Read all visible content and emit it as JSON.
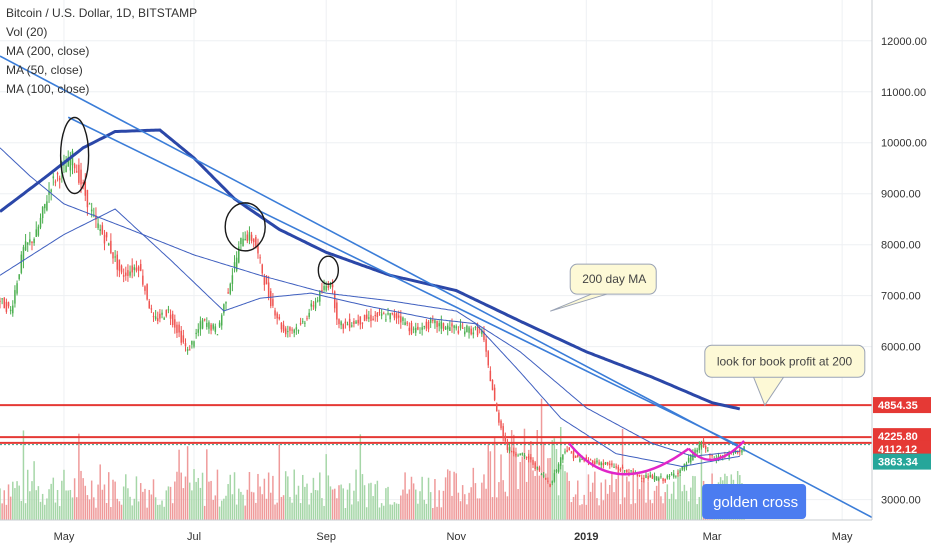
{
  "legend": {
    "symbol": "Bitcoin / U.S. Dollar, 1D, BITSTAMP",
    "indicators": [
      "Vol (20)",
      "MA (200, close)",
      "MA (50, close)",
      "MA (100, close)"
    ]
  },
  "colors": {
    "up": "#4caf50",
    "down": "#ef5350",
    "vol_up": "#a5d6a7",
    "vol_down": "#ef9a9a",
    "ma200": "#2b47a8",
    "ma_thin": "#3f5fbf",
    "trend": "#3b7dd8",
    "hline": "#e53935",
    "ellipse": "#1a1a1a",
    "cup": "#e026c8",
    "golden": "#4b7cf0",
    "callout_bg": "#fdf9d6",
    "callout_border": "#9aa3b5"
  },
  "chart_data": {
    "type": "candlestick",
    "title": "Bitcoin / U.S. Dollar, 1D, BITSTAMP",
    "ylim": [
      2600,
      12800
    ],
    "yticks": [
      "12000.00",
      "11000.00",
      "10000.00",
      "9000.00",
      "8000.00",
      "7000.00",
      "6000.00",
      "3000.00"
    ],
    "ytick_values": [
      12000,
      11000,
      10000,
      9000,
      8000,
      7000,
      6000,
      3000
    ],
    "xlim": [
      "2018-04-01",
      "2019-05-15"
    ],
    "xticks": [
      "May",
      "Jul",
      "Sep",
      "Nov",
      "2019",
      "Mar",
      "May"
    ],
    "xtick_dates": [
      "2018-05-01",
      "2018-07-01",
      "2018-09-01",
      "2018-11-01",
      "2019-01-01",
      "2019-03-01",
      "2019-05-01"
    ],
    "price_anchors": [
      [
        "2018-04-01",
        6900
      ],
      [
        "2018-04-06",
        6700
      ],
      [
        "2018-04-12",
        7900
      ],
      [
        "2018-04-18",
        8200
      ],
      [
        "2018-04-25",
        9200
      ],
      [
        "2018-05-05",
        9700
      ],
      [
        "2018-05-10",
        9100
      ],
      [
        "2018-05-15",
        8500
      ],
      [
        "2018-05-22",
        8000
      ],
      [
        "2018-05-28",
        7400
      ],
      [
        "2018-06-05",
        7600
      ],
      [
        "2018-06-12",
        6500
      ],
      [
        "2018-06-19",
        6700
      ],
      [
        "2018-06-28",
        5900
      ],
      [
        "2018-07-05",
        6500
      ],
      [
        "2018-07-12",
        6300
      ],
      [
        "2018-07-18",
        7300
      ],
      [
        "2018-07-24",
        8200
      ],
      [
        "2018-07-29",
        8100
      ],
      [
        "2018-08-05",
        7000
      ],
      [
        "2018-08-12",
        6300
      ],
      [
        "2018-08-20",
        6400
      ],
      [
        "2018-08-27",
        6900
      ],
      [
        "2018-09-03",
        7300
      ],
      [
        "2018-09-07",
        6400
      ],
      [
        "2018-09-15",
        6500
      ],
      [
        "2018-09-25",
        6600
      ],
      [
        "2018-10-05",
        6600
      ],
      [
        "2018-10-12",
        6300
      ],
      [
        "2018-10-20",
        6450
      ],
      [
        "2018-11-01",
        6350
      ],
      [
        "2018-11-13",
        6300
      ],
      [
        "2018-11-16",
        5600
      ],
      [
        "2018-11-20",
        4700
      ],
      [
        "2018-11-25",
        4000
      ],
      [
        "2018-12-05",
        3800
      ],
      [
        "2018-12-15",
        3300
      ],
      [
        "2018-12-22",
        4000
      ],
      [
        "2018-12-28",
        3800
      ],
      [
        "2019-01-10",
        3700
      ],
      [
        "2019-01-20",
        3550
      ],
      [
        "2019-01-28",
        3450
      ],
      [
        "2019-02-07",
        3400
      ],
      [
        "2019-02-15",
        3600
      ],
      [
        "2019-02-24",
        4100
      ],
      [
        "2019-03-01",
        3800
      ],
      [
        "2019-03-10",
        3900
      ],
      [
        "2019-03-16",
        4000
      ]
    ],
    "ma200_anchors": [
      [
        "2018-04-01",
        8650
      ],
      [
        "2018-04-20",
        9250
      ],
      [
        "2018-05-10",
        9900
      ],
      [
        "2018-05-25",
        10220
      ],
      [
        "2018-06-15",
        10250
      ],
      [
        "2018-07-01",
        9700
      ],
      [
        "2018-07-20",
        8900
      ],
      [
        "2018-08-10",
        8300
      ],
      [
        "2018-09-01",
        7850
      ],
      [
        "2018-10-01",
        7400
      ],
      [
        "2018-11-01",
        7100
      ],
      [
        "2018-12-01",
        6500
      ],
      [
        "2019-01-01",
        5900
      ],
      [
        "2019-02-01",
        5400
      ],
      [
        "2019-03-01",
        4900
      ],
      [
        "2019-03-14",
        4780
      ]
    ],
    "ma100_anchors": [
      [
        "2018-04-01",
        9900
      ],
      [
        "2018-04-15",
        9350
      ],
      [
        "2018-05-01",
        8800
      ],
      [
        "2018-06-01",
        8300
      ],
      [
        "2018-07-01",
        7800
      ],
      [
        "2018-08-01",
        7400
      ],
      [
        "2018-09-01",
        7050
      ],
      [
        "2018-10-01",
        6900
      ],
      [
        "2018-11-01",
        6700
      ],
      [
        "2018-12-01",
        5900
      ],
      [
        "2019-01-01",
        4800
      ],
      [
        "2019-02-01",
        4100
      ],
      [
        "2019-02-20",
        3850
      ],
      [
        "2019-03-14",
        3950
      ]
    ],
    "ma50_anchors": [
      [
        "2018-04-01",
        7400
      ],
      [
        "2018-05-01",
        8200
      ],
      [
        "2018-05-25",
        8700
      ],
      [
        "2018-06-20",
        7700
      ],
      [
        "2018-07-15",
        6700
      ],
      [
        "2018-08-01",
        6950
      ],
      [
        "2018-08-25",
        7050
      ],
      [
        "2018-09-20",
        6800
      ],
      [
        "2018-10-20",
        6550
      ],
      [
        "2018-11-10",
        6450
      ],
      [
        "2018-12-01",
        5500
      ],
      [
        "2018-12-20",
        4600
      ],
      [
        "2019-01-15",
        3900
      ],
      [
        "2019-02-15",
        3650
      ],
      [
        "2019-03-14",
        3850
      ]
    ],
    "trendlines": [
      [
        [
          "2018-04-01",
          11700
        ],
        [
          "2019-05-15",
          2650
        ]
      ],
      [
        [
          "2018-05-03",
          10500
        ],
        [
          "2019-03-14",
          4050
        ]
      ]
    ],
    "horizontal_levels": [
      {
        "value": 4854.35,
        "label": "4854.35"
      },
      {
        "value": 4225.8,
        "label": "4225.80"
      },
      {
        "value": 4112.12,
        "label": "4112.12"
      }
    ],
    "current_price": {
      "value": 3863.34,
      "label": "3863.34"
    },
    "annotations": [
      {
        "text": "200 day MA",
        "anchor": [
          "2018-12-01",
          6500
        ]
      },
      {
        "text": "look for book profit at 200",
        "anchor": [
          "2019-03-14",
          4850
        ]
      },
      {
        "text": "golden cross",
        "anchor": [
          "2019-03-01",
          3650
        ]
      }
    ],
    "ellipses": [
      {
        "center": [
          "2018-05-06",
          9750
        ]
      },
      {
        "center": [
          "2018-07-25",
          8350
        ]
      },
      {
        "center": [
          "2018-09-02",
          7500
        ]
      }
    ],
    "cup_and_handle": {
      "cup": [
        [
          "2018-12-24",
          4100
        ],
        [
          "2019-01-15",
          3300
        ],
        [
          "2019-02-18",
          4000
        ]
      ],
      "handle": [
        [
          "2019-02-18",
          4000
        ],
        [
          "2019-03-01",
          3850
        ],
        [
          "2019-03-16",
          4150
        ]
      ]
    }
  }
}
